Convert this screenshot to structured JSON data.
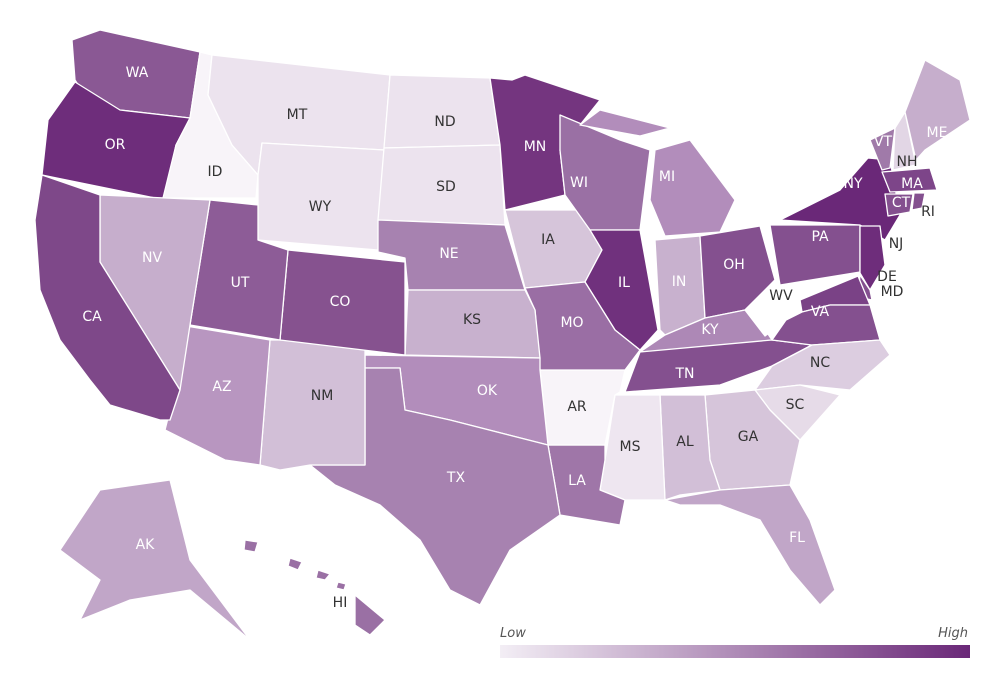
{
  "states": [
    {
      "label": "WA",
      "color": "#8a5894",
      "label_color": "#ffffff"
    },
    {
      "label": "OR",
      "color": "#6e2d7b",
      "label_color": "#ffffff"
    },
    {
      "label": "ID",
      "color": "#f8f4f9",
      "label_color": "#333333"
    },
    {
      "label": "MT",
      "color": "#ece3ee",
      "label_color": "#333333"
    },
    {
      "label": "WY",
      "color": "#ece3ee",
      "label_color": "#333333"
    },
    {
      "label": "ND",
      "color": "#ece3ee",
      "label_color": "#333333"
    },
    {
      "label": "SD",
      "color": "#ece3ee",
      "label_color": "#333333"
    },
    {
      "label": "MN",
      "color": "#74357f",
      "label_color": "#ffffff"
    },
    {
      "label": "NE",
      "color": "#a782b0",
      "label_color": "#ffffff"
    },
    {
      "label": "IA",
      "color": "#d6c5da",
      "label_color": "#333333"
    },
    {
      "label": "WI",
      "color": "#9a70a4",
      "label_color": "#ffffff"
    },
    {
      "label": "MI",
      "color": "#b28dbb",
      "label_color": "#ffffff"
    },
    {
      "label": "IL",
      "color": "#70317d",
      "label_color": "#ffffff"
    },
    {
      "label": "IN",
      "color": "#c8b1ce",
      "label_color": "#ffffff"
    },
    {
      "label": "OH",
      "color": "#84508f",
      "label_color": "#ffffff"
    },
    {
      "label": "KY",
      "color": "#ad88b6",
      "label_color": "#ffffff"
    },
    {
      "label": "TN",
      "color": "#84508f",
      "label_color": "#ffffff"
    },
    {
      "label": "WV",
      "color": "#ffffff",
      "label_color": "#333333"
    },
    {
      "label": "PA",
      "color": "#84508f",
      "label_color": "#ffffff"
    },
    {
      "label": "NY",
      "color": "#6a2878",
      "label_color": "#ffffff"
    },
    {
      "label": "VT",
      "color": "#a07aa9",
      "label_color": "#ffffff"
    },
    {
      "label": "NH",
      "color": "#e2d6e5",
      "label_color": "#333333"
    },
    {
      "label": "ME",
      "color": "#c6aecc",
      "label_color": "#ffffff"
    },
    {
      "label": "MA",
      "color": "#7d4589",
      "label_color": "#ffffff"
    },
    {
      "label": "CT",
      "color": "#84508f",
      "label_color": "#ffffff"
    },
    {
      "label": "RI",
      "color": "#84508f",
      "label_color": "#333333"
    },
    {
      "label": "NJ",
      "color": "#6e2d7b",
      "label_color": "#333333"
    },
    {
      "label": "DE",
      "color": "#84508f",
      "label_color": "#333333"
    },
    {
      "label": "MD",
      "color": "#7a4286",
      "label_color": "#333333"
    },
    {
      "label": "VA",
      "color": "#84508f",
      "label_color": "#ffffff"
    },
    {
      "label": "NC",
      "color": "#dccde0",
      "label_color": "#333333"
    },
    {
      "label": "SC",
      "color": "#e6dbe8",
      "label_color": "#333333"
    },
    {
      "label": "GA",
      "color": "#d6c5da",
      "label_color": "#333333"
    },
    {
      "label": "AL",
      "color": "#d2bfd7",
      "label_color": "#333333"
    },
    {
      "label": "MS",
      "color": "#eee6f0",
      "label_color": "#333333"
    },
    {
      "label": "FL",
      "color": "#c1a6c8",
      "label_color": "#ffffff"
    },
    {
      "label": "LA",
      "color": "#9f76a8",
      "label_color": "#ffffff"
    },
    {
      "label": "AR",
      "color": "#f8f4f9",
      "label_color": "#333333"
    },
    {
      "label": "MO",
      "color": "#9a6ea4",
      "label_color": "#ffffff"
    },
    {
      "label": "KS",
      "color": "#c8b1ce",
      "label_color": "#333333"
    },
    {
      "label": "OK",
      "color": "#b28dbb",
      "label_color": "#ffffff"
    },
    {
      "label": "TX",
      "color": "#a782b0",
      "label_color": "#ffffff"
    },
    {
      "label": "NM",
      "color": "#d2bfd7",
      "label_color": "#333333"
    },
    {
      "label": "AZ",
      "color": "#b896c0",
      "label_color": "#ffffff"
    },
    {
      "label": "CO",
      "color": "#86528f",
      "label_color": "#ffffff"
    },
    {
      "label": "UT",
      "color": "#8d5c97",
      "label_color": "#ffffff"
    },
    {
      "label": "NV",
      "color": "#c6aecc",
      "label_color": "#ffffff"
    },
    {
      "label": "CA",
      "color": "#7e4889",
      "label_color": "#ffffff"
    },
    {
      "label": "AK",
      "color": "#c1a6c8",
      "label_color": "#ffffff"
    },
    {
      "label": "HI",
      "color": "#9a70a4",
      "label_color": "#333333"
    }
  ],
  "legend": {
    "low": "Low",
    "high": "High",
    "colors": [
      "#f3eef5",
      "#6a2878"
    ]
  }
}
